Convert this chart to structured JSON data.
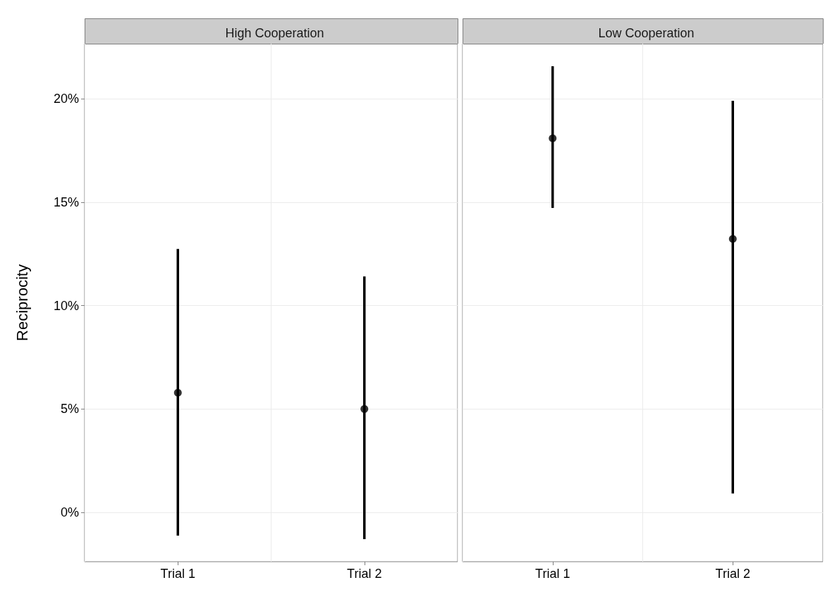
{
  "chart_data": [
    {
      "type": "scatter",
      "title": "High Cooperation",
      "ylabel": "Reciprocity",
      "categories": [
        "Trial 1",
        "Trial 2"
      ],
      "values": [
        5.79,
        5.0
      ],
      "errors": [
        [
          -1.12,
          12.74
        ],
        [
          -1.29,
          11.41
        ]
      ],
      "color": "#000000",
      "marker": "circle",
      "ylim": [
        -2.38,
        22.66
      ],
      "yticks": [
        {
          "value": 0,
          "label": "0%"
        },
        {
          "value": 5,
          "label": "5%"
        },
        {
          "value": 10,
          "label": "10%"
        },
        {
          "value": 15,
          "label": "15%"
        },
        {
          "value": 20,
          "label": "20%"
        }
      ],
      "grid": true
    },
    {
      "type": "scatter",
      "title": "Low Cooperation",
      "categories": [
        "Trial 1",
        "Trial 2"
      ],
      "values": [
        18.09,
        13.22
      ],
      "errors": [
        [
          14.72,
          21.57
        ],
        [
          0.92,
          19.9
        ]
      ],
      "color": "#000000",
      "marker": "circle",
      "ylim": [
        -2.38,
        22.66
      ],
      "yticks": [
        {
          "value": 0,
          "label": null
        },
        {
          "value": 5,
          "label": null
        },
        {
          "value": 10,
          "label": null
        },
        {
          "value": 15,
          "label": null
        },
        {
          "value": 20,
          "label": null
        }
      ],
      "grid": true,
      "tick_labels": "x"
    }
  ]
}
